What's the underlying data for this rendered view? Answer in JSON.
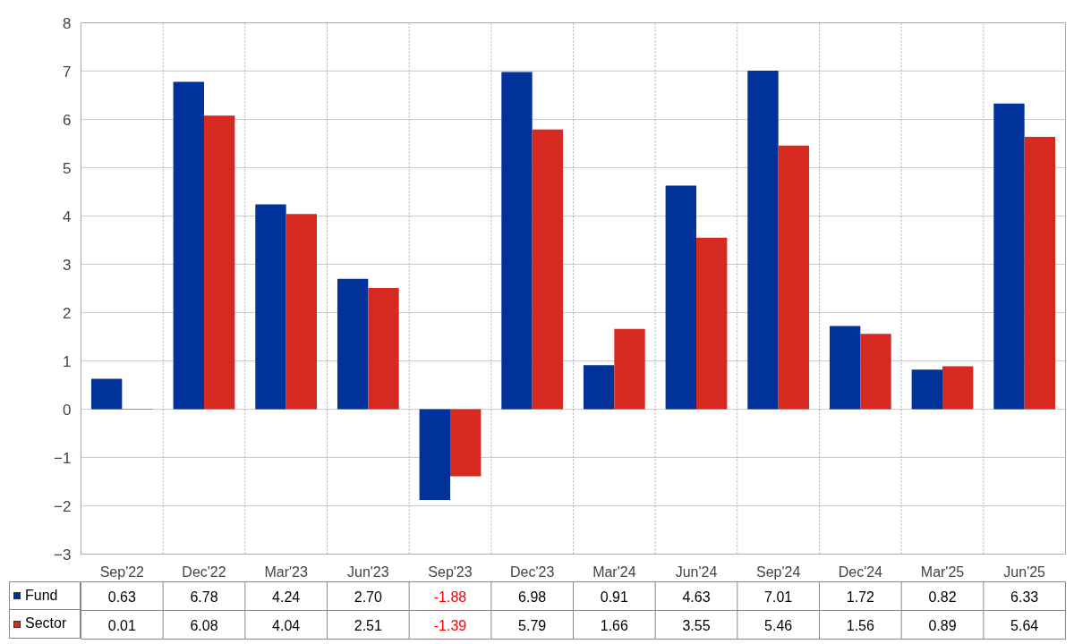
{
  "chart_data": {
    "type": "bar",
    "categories": [
      "Sep'22",
      "Dec'22",
      "Mar'23",
      "Jun'23",
      "Sep'23",
      "Dec'23",
      "Mar'24",
      "Jun'24",
      "Sep'24",
      "Dec'24",
      "Mar'25",
      "Jun'25"
    ],
    "series": [
      {
        "name": "Fund",
        "color": "#003299",
        "values": [
          0.63,
          6.78,
          4.24,
          2.7,
          -1.88,
          6.98,
          0.91,
          4.63,
          7.01,
          1.72,
          0.82,
          6.33
        ],
        "value_labels": [
          "0.63",
          "6.78",
          "4.24",
          "2.70",
          "-1.88",
          "6.98",
          "0.91",
          "4.63",
          "7.01",
          "1.72",
          "0.82",
          "6.33"
        ]
      },
      {
        "name": "Sector",
        "color": "#d62a20",
        "values": [
          0.01,
          6.08,
          4.04,
          2.51,
          -1.39,
          5.79,
          1.66,
          3.55,
          5.46,
          1.56,
          0.89,
          5.64
        ],
        "value_labels": [
          "0.01",
          "6.08",
          "4.04",
          "2.51",
          "-1.39",
          "5.79",
          "1.66",
          "3.55",
          "5.46",
          "1.56",
          "0.89",
          "5.64"
        ]
      }
    ],
    "ylim": [
      -3,
      8
    ],
    "yticks": [
      -3,
      -2,
      -1,
      0,
      1,
      2,
      3,
      4,
      5,
      6,
      7,
      8
    ],
    "grid": true,
    "legend": "bottom"
  }
}
